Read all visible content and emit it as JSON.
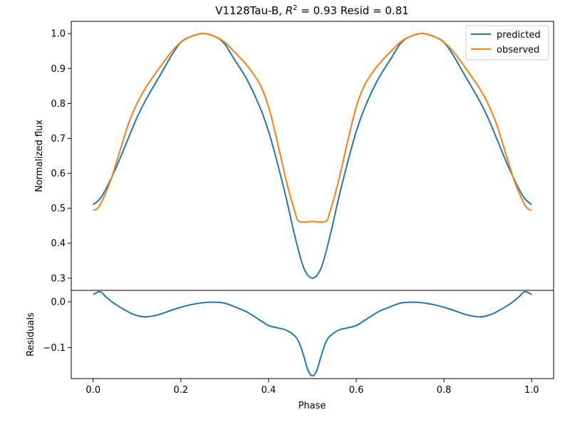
{
  "chart_data": [
    {
      "type": "line",
      "title_prefix": "V1128Tau-B, ",
      "title_r2_base": "R",
      "title_r2_exp": "2",
      "title_suffix": " = 0.93 Resid = 0.81",
      "xlabel": "",
      "ylabel": "Normalized flux",
      "xlim": [
        -0.05,
        1.05
      ],
      "ylim": [
        0.265,
        1.035
      ],
      "yticks": [
        0.3,
        0.4,
        0.5,
        0.6,
        0.7,
        0.8,
        0.9,
        1.0
      ],
      "ytick_labels": [
        "0.3",
        "0.4",
        "0.5",
        "0.6",
        "0.7",
        "0.8",
        "0.9",
        "1.0"
      ],
      "legend_position": "top-right",
      "series": [
        {
          "name": "predicted",
          "color": "#1f77b4",
          "x": [
            0.0,
            0.02,
            0.05,
            0.08,
            0.1,
            0.12,
            0.15,
            0.18,
            0.2,
            0.22,
            0.25,
            0.28,
            0.3,
            0.32,
            0.35,
            0.38,
            0.4,
            0.42,
            0.44,
            0.46,
            0.48,
            0.5,
            0.52,
            0.54,
            0.56,
            0.58,
            0.6,
            0.62,
            0.65,
            0.68,
            0.7,
            0.72,
            0.75,
            0.78,
            0.8,
            0.82,
            0.85,
            0.88,
            0.9,
            0.92,
            0.95,
            0.98,
            1.0
          ],
          "y": [
            0.51,
            0.535,
            0.61,
            0.7,
            0.76,
            0.81,
            0.875,
            0.94,
            0.975,
            0.99,
            1.0,
            0.99,
            0.97,
            0.93,
            0.87,
            0.79,
            0.72,
            0.63,
            0.53,
            0.42,
            0.33,
            0.3,
            0.33,
            0.42,
            0.53,
            0.63,
            0.72,
            0.79,
            0.87,
            0.93,
            0.97,
            0.99,
            1.0,
            0.99,
            0.975,
            0.94,
            0.875,
            0.81,
            0.76,
            0.7,
            0.61,
            0.535,
            0.51
          ]
        },
        {
          "name": "observed",
          "color": "#ff7f0e",
          "x": [
            0.0,
            0.01,
            0.02,
            0.04,
            0.06,
            0.08,
            0.1,
            0.12,
            0.15,
            0.18,
            0.2,
            0.22,
            0.25,
            0.28,
            0.3,
            0.32,
            0.35,
            0.38,
            0.4,
            0.42,
            0.44,
            0.46,
            0.47,
            0.5,
            0.53,
            0.54,
            0.56,
            0.58,
            0.6,
            0.62,
            0.65,
            0.68,
            0.7,
            0.72,
            0.75,
            0.78,
            0.8,
            0.82,
            0.85,
            0.88,
            0.9,
            0.92,
            0.94,
            0.96,
            0.98,
            0.99,
            1.0
          ],
          "y": [
            0.494,
            0.5,
            0.52,
            0.58,
            0.66,
            0.74,
            0.8,
            0.845,
            0.9,
            0.95,
            0.975,
            0.99,
            1.0,
            0.99,
            0.975,
            0.95,
            0.91,
            0.855,
            0.79,
            0.69,
            0.58,
            0.49,
            0.462,
            0.462,
            0.462,
            0.49,
            0.58,
            0.69,
            0.79,
            0.855,
            0.91,
            0.95,
            0.975,
            0.99,
            1.0,
            0.99,
            0.975,
            0.95,
            0.9,
            0.845,
            0.8,
            0.74,
            0.66,
            0.58,
            0.52,
            0.5,
            0.494
          ]
        }
      ]
    },
    {
      "type": "line",
      "title": "",
      "xlabel": "Phase",
      "ylabel": "Residuals",
      "xlim": [
        -0.05,
        1.05
      ],
      "ylim": [
        -0.168,
        0.025
      ],
      "xticks": [
        0.0,
        0.2,
        0.4,
        0.6,
        0.8,
        1.0
      ],
      "xtick_labels": [
        "0.0",
        "0.2",
        "0.4",
        "0.6",
        "0.8",
        "1.0"
      ],
      "yticks": [
        0.0,
        -0.1
      ],
      "ytick_labels": [
        "0.0",
        "−0.1"
      ],
      "series": [
        {
          "name": "",
          "color": "#1f77b4",
          "x": [
            0.0,
            0.01,
            0.015,
            0.02,
            0.03,
            0.05,
            0.08,
            0.1,
            0.12,
            0.15,
            0.18,
            0.2,
            0.22,
            0.25,
            0.28,
            0.3,
            0.32,
            0.35,
            0.38,
            0.4,
            0.42,
            0.44,
            0.46,
            0.47,
            0.48,
            0.49,
            0.5,
            0.51,
            0.52,
            0.53,
            0.54,
            0.56,
            0.58,
            0.6,
            0.62,
            0.65,
            0.68,
            0.7,
            0.72,
            0.75,
            0.78,
            0.8,
            0.82,
            0.85,
            0.88,
            0.9,
            0.92,
            0.95,
            0.97,
            0.98,
            0.985,
            0.99,
            1.0
          ],
          "y": [
            0.016,
            0.021,
            0.022,
            0.02,
            0.01,
            -0.005,
            -0.022,
            -0.03,
            -0.033,
            -0.028,
            -0.018,
            -0.012,
            -0.007,
            -0.002,
            -0.001,
            -0.003,
            -0.01,
            -0.022,
            -0.04,
            -0.052,
            -0.057,
            -0.062,
            -0.075,
            -0.09,
            -0.118,
            -0.15,
            -0.162,
            -0.15,
            -0.118,
            -0.09,
            -0.075,
            -0.062,
            -0.057,
            -0.052,
            -0.04,
            -0.022,
            -0.01,
            -0.003,
            -0.001,
            -0.002,
            -0.007,
            -0.012,
            -0.018,
            -0.028,
            -0.033,
            -0.03,
            -0.022,
            -0.005,
            0.01,
            0.02,
            0.022,
            0.021,
            0.016
          ]
        }
      ]
    }
  ]
}
